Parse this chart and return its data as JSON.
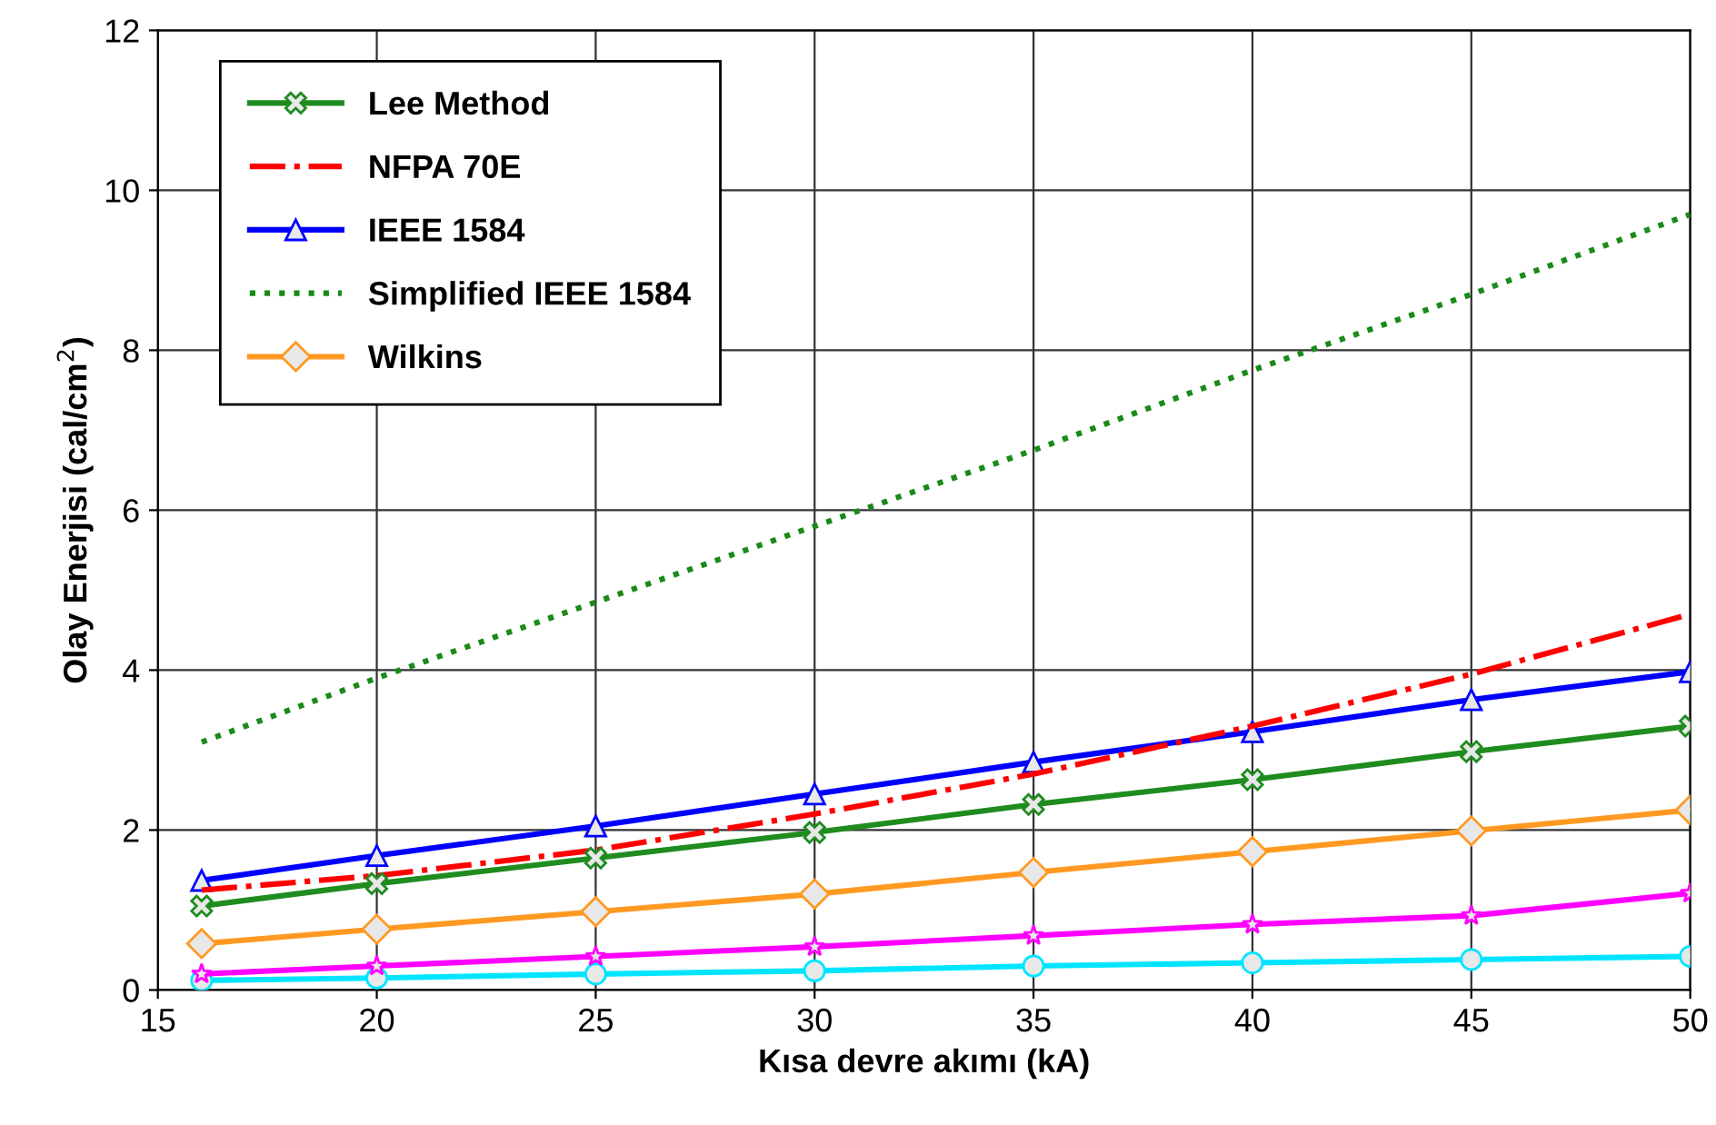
{
  "chart_data": {
    "type": "line",
    "xlabel": "Kısa devre akımı (kA)",
    "ylabel": "Olay Enerjisi (cal/cm$^{2}$)",
    "x": [
      16,
      20,
      25,
      30,
      35,
      40,
      45,
      50
    ],
    "xlim": [
      15,
      50
    ],
    "xticks": [
      15,
      20,
      25,
      30,
      35,
      40,
      45,
      50
    ],
    "ylim": [
      0,
      12
    ],
    "yticks": [
      0,
      2,
      4,
      6,
      8,
      10,
      12
    ],
    "grid": true,
    "legend": "top left",
    "series": [
      {
        "name": "Lee Method",
        "color": "#1f8c1f",
        "marker": "cross",
        "line_style": "solid",
        "values": [
          1.05,
          1.33,
          1.65,
          1.97,
          2.32,
          2.63,
          2.98,
          3.3
        ]
      },
      {
        "name": "NFPA 70E",
        "color": "#ff0000",
        "marker": "none",
        "line_style": "dashdot",
        "values": [
          1.25,
          1.43,
          1.75,
          2.2,
          2.7,
          3.3,
          3.95,
          4.7
        ]
      },
      {
        "name": "IEEE 1584",
        "color": "#0000ff",
        "marker": "triangle",
        "line_style": "solid",
        "values": [
          1.37,
          1.68,
          2.05,
          2.45,
          2.85,
          3.23,
          3.63,
          3.98
        ]
      },
      {
        "name": "Simplified IEEE 1584",
        "color": "#1a8a1a",
        "marker": "none",
        "line_style": "dotted",
        "values": [
          3.1,
          3.9,
          4.85,
          5.8,
          6.75,
          7.75,
          8.7,
          9.7
        ]
      },
      {
        "name": "Wilkins",
        "color": "#ff9922",
        "marker": "diamond",
        "line_style": "solid",
        "values": [
          0.58,
          0.76,
          0.98,
          1.2,
          1.47,
          1.73,
          1.99,
          2.25
        ]
      },
      {
        "color": "#ff00ff",
        "marker": "star",
        "line_style": "solid",
        "values": [
          0.2,
          0.3,
          0.42,
          0.54,
          0.68,
          0.82,
          0.93,
          1.21
        ]
      },
      {
        "color": "#00e5ff",
        "marker": "circle",
        "line_style": "solid",
        "values": [
          0.12,
          0.15,
          0.2,
          0.24,
          0.3,
          0.34,
          0.38,
          0.42
        ]
      }
    ]
  }
}
